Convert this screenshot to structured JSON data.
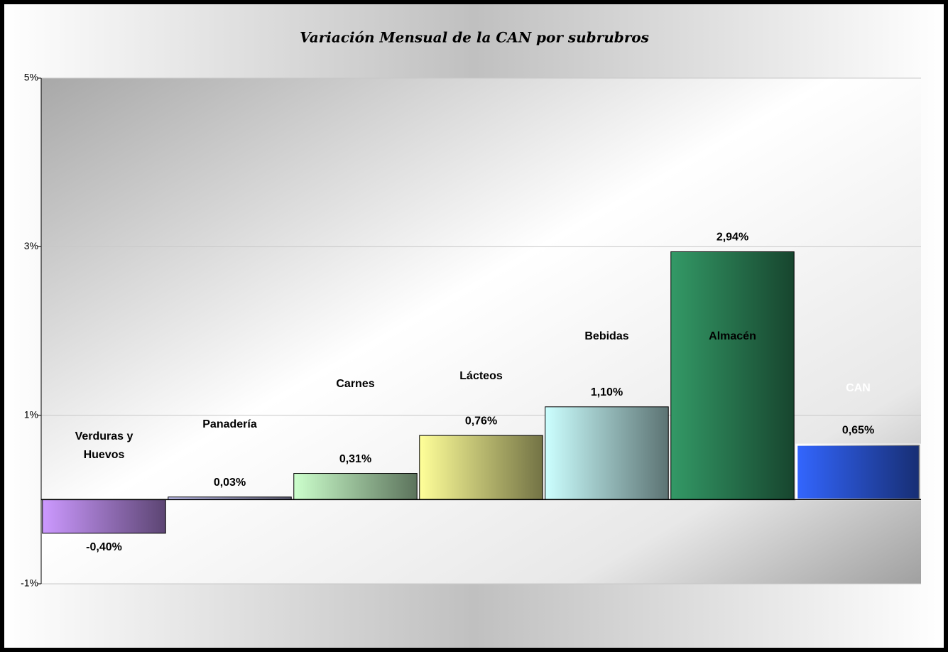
{
  "chart_data": {
    "type": "bar",
    "title": "Variación Mensual de la CAN por subrubros",
    "categories": [
      "Verduras y Huevos",
      "Panadería",
      "Carnes",
      "Lácteos",
      "Bebidas",
      "Almacén",
      "CAN"
    ],
    "values": [
      -0.4,
      0.03,
      0.31,
      0.76,
      1.1,
      2.94,
      0.65
    ],
    "value_labels": [
      "-0,40%",
      "0,03%",
      "0,31%",
      "0,76%",
      "1,10%",
      "2,94%",
      "0,65%"
    ],
    "colors": [
      "#cc99ff",
      "#ccccff",
      "#ccffcc",
      "#ffff99",
      "#ccffff",
      "#339966",
      "#3366ff"
    ],
    "ylim": [
      -1,
      5
    ],
    "yticks": [
      {
        "value": -1,
        "label": "-1%"
      },
      {
        "value": 1,
        "label": "1%"
      },
      {
        "value": 3,
        "label": "3%"
      },
      {
        "value": 5,
        "label": "5%"
      }
    ],
    "grid": true
  }
}
